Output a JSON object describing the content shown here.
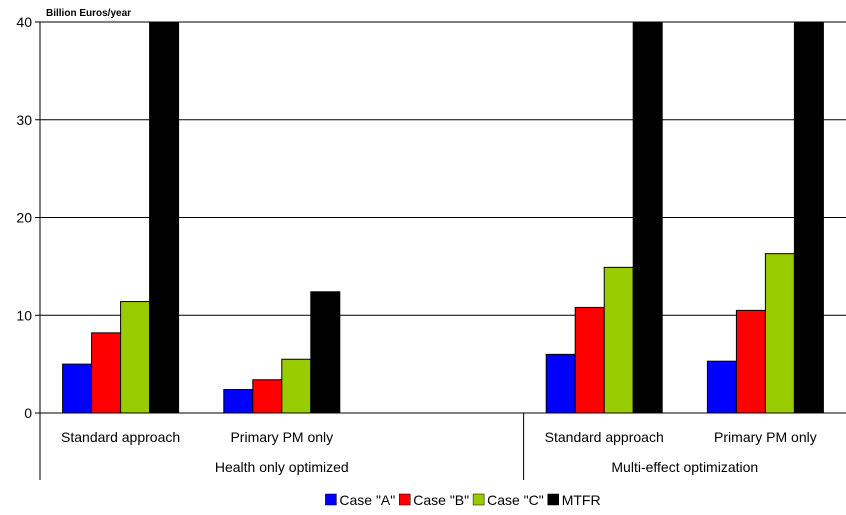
{
  "chart_data": {
    "type": "bar",
    "title": "",
    "ylabel": "Billion Euros/year",
    "xlabel": "",
    "ylim": [
      0,
      40
    ],
    "yticks": [
      0,
      10,
      20,
      30,
      40
    ],
    "grid": true,
    "legend_position": "bottom",
    "groups": [
      {
        "label": "Health only optimized",
        "categories": [
          "Standard approach",
          "Primary PM only"
        ]
      },
      {
        "label": "Multi-effect optimization",
        "categories": [
          "Standard approach",
          "Primary PM only"
        ]
      }
    ],
    "categories": [
      "Standard approach",
      "Primary PM only",
      "",
      "Standard approach",
      "Primary PM only"
    ],
    "series": [
      {
        "name": "Case \"A\"",
        "color": "#0000ff",
        "values": [
          5.0,
          2.4,
          null,
          6.0,
          5.3
        ]
      },
      {
        "name": "Case \"B\"",
        "color": "#ff0000",
        "values": [
          8.2,
          3.4,
          null,
          10.8,
          10.5
        ]
      },
      {
        "name": "Case \"C\"",
        "color": "#99cc00",
        "values": [
          11.4,
          5.5,
          null,
          14.9,
          16.3
        ]
      },
      {
        "name": "MTFR",
        "color": "#000000",
        "values": [
          40,
          12.4,
          null,
          40,
          40
        ]
      }
    ]
  }
}
